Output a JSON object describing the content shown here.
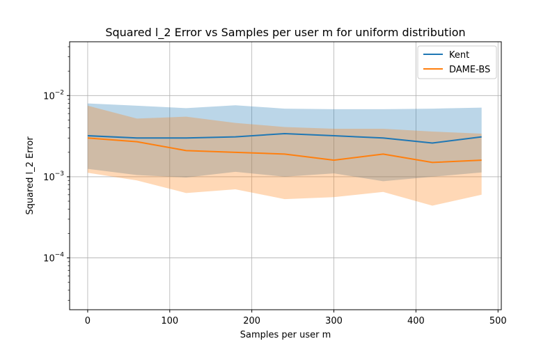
{
  "chart_data": {
    "type": "line",
    "title": "Squared l_2 Error vs Samples per user m for uniform distribution",
    "xlabel": "Samples per user m",
    "ylabel": "Squared l_2 Error",
    "xlim": [
      -22,
      504
    ],
    "ylim": [
      2.3e-05,
      0.046
    ],
    "yscale": "log",
    "grid": true,
    "legend_position": "top-right",
    "x_ticks": [
      0,
      100,
      200,
      300,
      400,
      500
    ],
    "y_ticks": [
      {
        "value": 0.0001,
        "base": "10",
        "exp": "−4"
      },
      {
        "value": 0.001,
        "base": "10",
        "exp": "−3"
      },
      {
        "value": 0.01,
        "base": "10",
        "exp": "−2"
      }
    ],
    "x": [
      0,
      60,
      120,
      180,
      240,
      300,
      360,
      420,
      480
    ],
    "series": [
      {
        "name": "Kent",
        "color": "#1f77b4",
        "values": [
          0.0032,
          0.003,
          0.003,
          0.0031,
          0.0034,
          0.0032,
          0.003,
          0.0026,
          0.0031
        ],
        "lower": [
          0.00125,
          0.00105,
          0.00098,
          0.00115,
          0.001,
          0.0011,
          0.00088,
          0.001,
          0.00113
        ],
        "upper": [
          0.008,
          0.0075,
          0.007,
          0.0076,
          0.0069,
          0.0068,
          0.0068,
          0.0069,
          0.0071
        ]
      },
      {
        "name": "DAME-BS",
        "color": "#ff7f0e",
        "values": [
          0.003,
          0.0027,
          0.0021,
          0.002,
          0.0019,
          0.0016,
          0.0019,
          0.0015,
          0.0016
        ],
        "lower": [
          0.00112,
          0.0009,
          0.00063,
          0.0007,
          0.00053,
          0.00056,
          0.00065,
          0.00044,
          0.0006
        ],
        "upper": [
          0.0075,
          0.0052,
          0.0055,
          0.0046,
          0.0041,
          0.0039,
          0.0039,
          0.0036,
          0.0034
        ]
      }
    ]
  }
}
